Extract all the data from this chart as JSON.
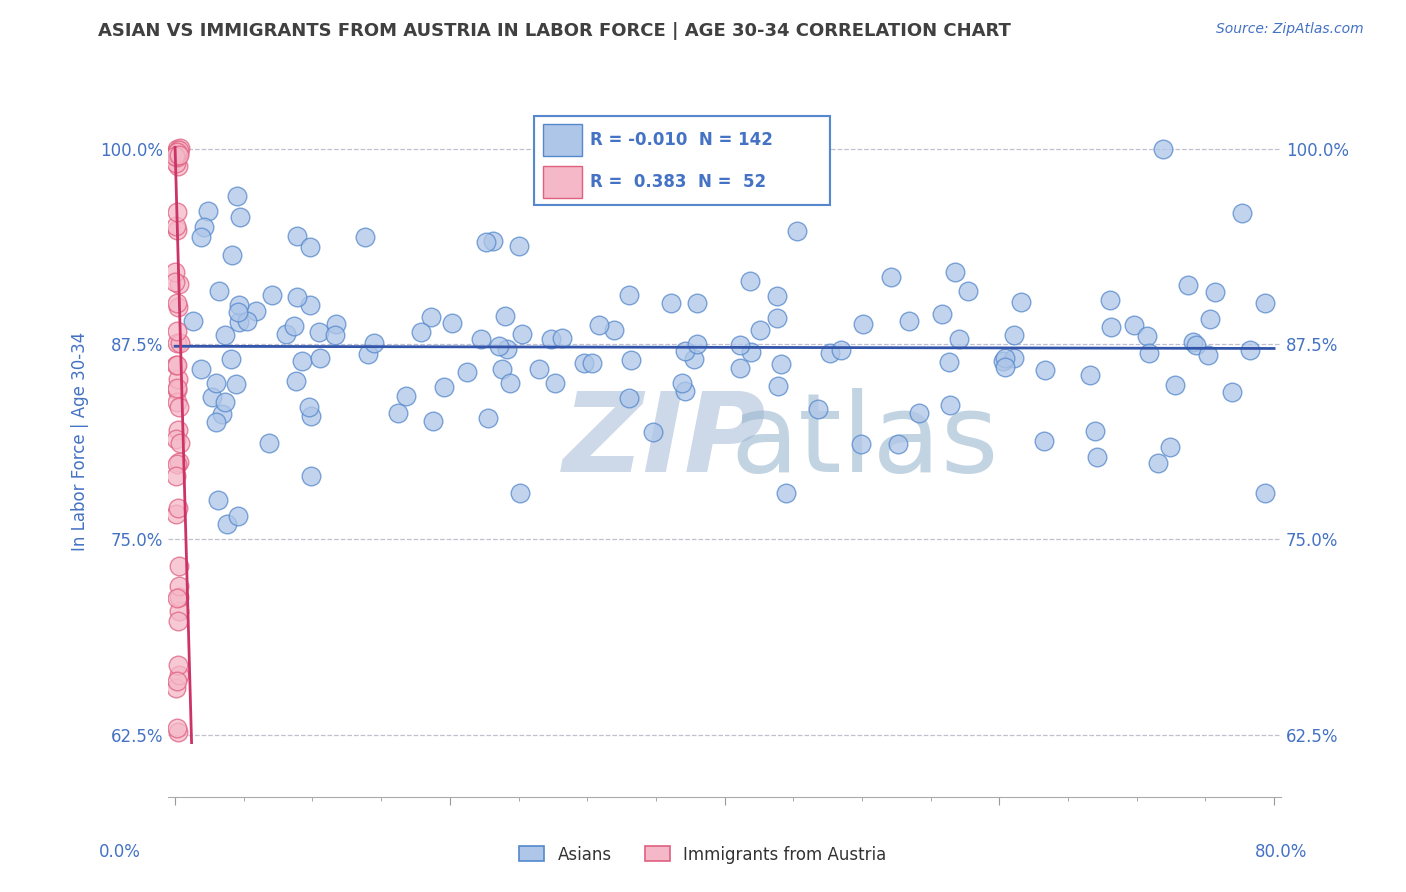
{
  "title": "ASIAN VS IMMIGRANTS FROM AUSTRIA IN LABOR FORCE | AGE 30-34 CORRELATION CHART",
  "source": "Source: ZipAtlas.com",
  "ylabel": "In Labor Force | Age 30-34",
  "xlim": [
    -0.005,
    0.805
  ],
  "ylim": [
    0.585,
    1.04
  ],
  "blue_R": "-0.010",
  "blue_N": "142",
  "pink_R": "0.383",
  "pink_N": "52",
  "blue_fill_color": "#aec6e8",
  "pink_fill_color": "#f5b8c8",
  "blue_edge_color": "#5588cc",
  "pink_edge_color": "#e06080",
  "blue_line_color": "#3355aa",
  "pink_line_color": "#cc3366",
  "legend_blue_label": "Asians",
  "legend_pink_label": "Immigrants from Austria",
  "background_color": "#ffffff",
  "grid_color": "#c0c0d0",
  "title_color": "#404040",
  "axis_label_color": "#4472c4",
  "source_color": "#4472c4",
  "watermark_zip_color": "#cdd8e8",
  "watermark_atlas_color": "#9ab8d0"
}
